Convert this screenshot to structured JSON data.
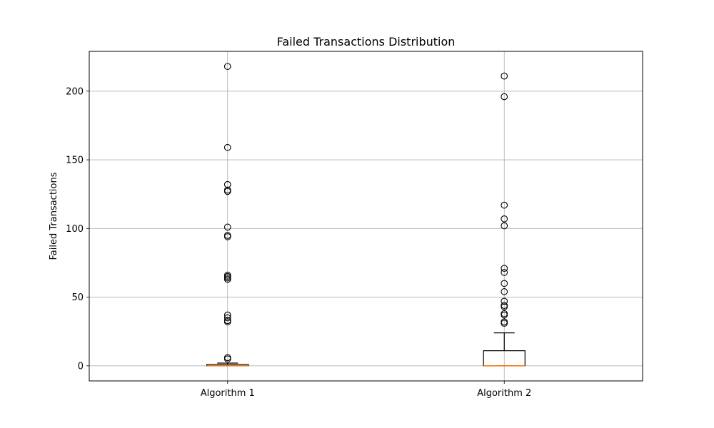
{
  "chart_data": {
    "type": "box",
    "title": "Failed Transactions Distribution",
    "xlabel": "",
    "ylabel": "Failed Transactions",
    "ylim": [
      -11,
      229
    ],
    "yticks": [
      0,
      50,
      100,
      150,
      200
    ],
    "grid": true,
    "categories": [
      "Algorithm 1",
      "Algorithm 2"
    ],
    "series": [
      {
        "category": "Algorithm 1",
        "whisker_low": 0,
        "q1": 0,
        "median": 0,
        "q3": 1,
        "whisker_high": 2,
        "outliers": [
          218,
          159,
          132,
          128,
          127,
          101,
          95,
          94,
          66,
          65,
          64,
          63,
          37,
          35,
          33,
          32,
          6,
          5
        ]
      },
      {
        "category": "Algorithm 2",
        "whisker_low": 0,
        "q1": 0,
        "median": 0,
        "q3": 11,
        "whisker_high": 24,
        "outliers": [
          211,
          196,
          117,
          107,
          102,
          71,
          68,
          60,
          54,
          47,
          44,
          43,
          38,
          37,
          32,
          31
        ]
      }
    ],
    "colors": {
      "median": "#ff7f0e",
      "box": "#000000",
      "grid": "#b0b0b0"
    }
  }
}
